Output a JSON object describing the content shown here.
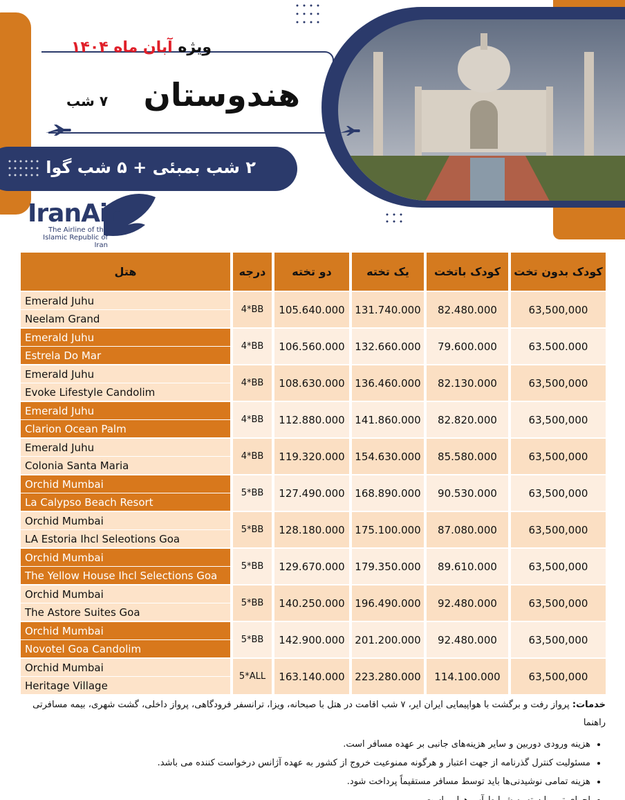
{
  "header": {
    "special": "ویژه",
    "month": "آبان ماه ۱۴۰۴",
    "destination": "هندوستان",
    "nights": "۷ شب",
    "itinerary": "۲ شب بمبئی + ۵ شب گوا"
  },
  "airline": {
    "name": "IranAir",
    "tagline_1": "The Airline of the",
    "tagline_2": "Islamic Republic of Iran"
  },
  "table": {
    "columns": [
      "هتل",
      "درجه",
      "دو تخته",
      "یک تخته",
      "کودک باتخت",
      "کودک بدون تخت"
    ],
    "rows": [
      {
        "hotels": [
          "Emerald Juhu",
          "Neelam Grand"
        ],
        "grade": "4*BB",
        "double": "105.640.000",
        "single": "131.740.000",
        "child_bed": "82.480.000",
        "child_no_bed": "63,500,000"
      },
      {
        "hotels": [
          "Emerald Juhu",
          "Estrela  Do Mar"
        ],
        "grade": "4*BB",
        "double": "106.560.000",
        "single": "132.660.000",
        "child_bed": "79.600.000",
        "child_no_bed": "63.500.000"
      },
      {
        "hotels": [
          "Emerald Juhu",
          "Evoke Lifestyle Candolim"
        ],
        "grade": "4*BB",
        "double": "108.630.000",
        "single": "136.460.000",
        "child_bed": "82.130.000",
        "child_no_bed": "63,500,000"
      },
      {
        "hotels": [
          "Emerald Juhu",
          "Clarion Ocean Palm"
        ],
        "grade": "4*BB",
        "double": "112.880.000",
        "single": "141.860.000",
        "child_bed": "82.820.000",
        "child_no_bed": "63,500,000"
      },
      {
        "hotels": [
          "Emerald Juhu",
          "Colonia Santa Maria"
        ],
        "grade": "4*BB",
        "double": "119.320.000",
        "single": "154.630.000",
        "child_bed": "85.580.000",
        "child_no_bed": "63,500,000"
      },
      {
        "hotels": [
          "Orchid Mumbai",
          "La Calypso Beach Resort"
        ],
        "grade": "5*BB",
        "double": "127.490.000",
        "single": "168.890.000",
        "child_bed": "90.530.000",
        "child_no_bed": "63,500,000"
      },
      {
        "hotels": [
          "Orchid Mumbai",
          "LA Estoria Ihcl Seleotions Goa"
        ],
        "grade": "5*BB",
        "double": "128.180.000",
        "single": "175.100.000",
        "child_bed": "87.080.000",
        "child_no_bed": "63,500,000"
      },
      {
        "hotels": [
          "Orchid Mumbai",
          "The Yellow House Ihcl Selections Goa"
        ],
        "grade": "5*BB",
        "double": "129.670.000",
        "single": "179.350.000",
        "child_bed": "89.610.000",
        "child_no_bed": "63,500,000"
      },
      {
        "hotels": [
          "Orchid Mumbai",
          "The Astore Suites Goa"
        ],
        "grade": "5*BB",
        "double": "140.250.000",
        "single": "196.490.000",
        "child_bed": "92.480.000",
        "child_no_bed": "63,500,000"
      },
      {
        "hotels": [
          "Orchid Mumbai",
          "Novotel Goa Candolim"
        ],
        "grade": "5*BB",
        "double": "142.900.000",
        "single": "201.200.000",
        "child_bed": "92.480.000",
        "child_no_bed": "63,500,000"
      },
      {
        "hotels": [
          "Orchid Mumbai",
          "Heritage Village"
        ],
        "grade": "5*ALL",
        "double": "163.140.000",
        "single": "223.280.000",
        "child_bed": "114.100.000",
        "child_no_bed": "63,500,000"
      }
    ]
  },
  "notes": {
    "services_label": "خدمات:",
    "services": "پرواز رفت و برگشت با هواپیمایی ایران ایر، ۷ شب اقامت در هتل با صبحانه، ویزا، ترانسفر فرودگاهی، پرواز داخلی، گشت شهری، بیمه مسافرتی راهنما",
    "bullets": [
      "هزینه ورودی دوربین و سایر هزینه‌های جانبی بر عهده مسافر است.",
      "مسئولیت کنترل گذرنامه از جهت اعتبار و هرگونه ممنوعیت خروج از کشور به عهده آژانس درخواست کننده می باشد.",
      "هزینه تمامی نوشیدنی‌ها باید توسط مسافر مستقیماً پرداخت شود.",
      "اجرای تور وابسته به شرایط آب‌وهوایی است."
    ]
  }
}
